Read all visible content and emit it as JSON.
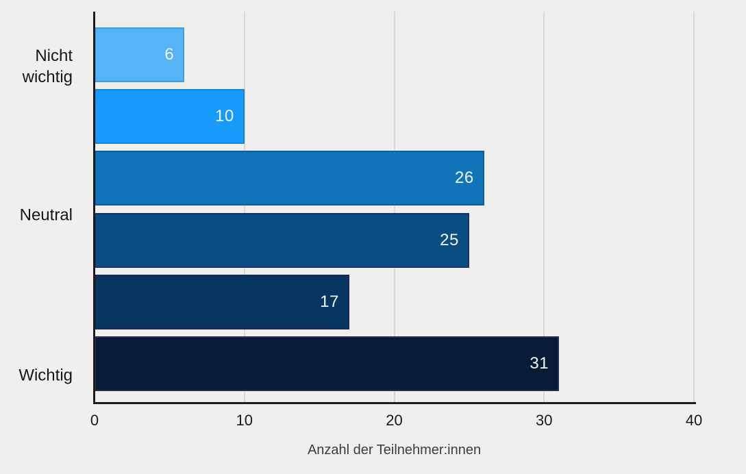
{
  "chart_data": {
    "type": "bar",
    "orientation": "horizontal",
    "title": "",
    "xlabel": "Anzahl der Teilnehmer:innen",
    "ylabel": "",
    "xlim": [
      0,
      40
    ],
    "x_ticks": [
      0,
      10,
      20,
      30,
      40
    ],
    "grid": "vertical-gridlines-behind-bars",
    "legend": "none",
    "categories": [
      "Nicht wichtig",
      "Neutral",
      "Wichtig"
    ],
    "category_note": "three labels mark the top, middle and bottom pair of the six bars",
    "bars": [
      {
        "value": 6,
        "color": "#54b4f7",
        "border_color": "#3d9fe3"
      },
      {
        "value": 10,
        "color": "#189afa",
        "border_color": "#0d86e2"
      },
      {
        "value": 26,
        "color": "#1173b8",
        "border_color": "#0c5f9e"
      },
      {
        "value": 25,
        "color": "#094d82",
        "border_color": "#1e2f6d"
      },
      {
        "value": 17,
        "color": "#063560",
        "border_color": "#1c2558"
      },
      {
        "value": 31,
        "color": "#051b36",
        "border_color": "#26304e"
      }
    ],
    "value_label_color": "#f4f7fd",
    "colors": {
      "background": "#f0efed",
      "gridline": "#d9d8d5",
      "axis_line": "#1c1c1c",
      "tick_label": "#1a1a1a",
      "category_label": "#161616",
      "axis_title": "#3c3c3c"
    }
  }
}
